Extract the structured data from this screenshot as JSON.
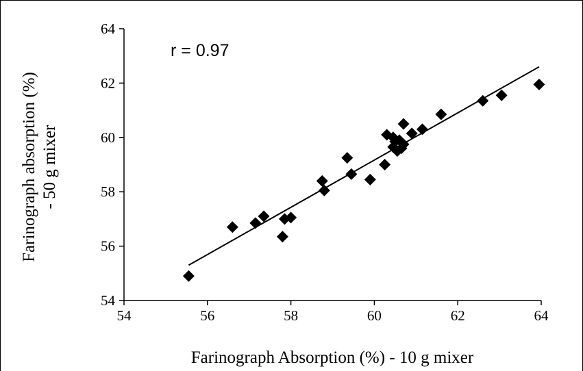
{
  "chart_data": {
    "type": "scatter",
    "title": "",
    "xlabel": "Farinograph Absorption (%) - 10 g mixer",
    "ylabel_line1": "Farinograph absorption (%)",
    "ylabel_line2": "- 50 g mixer",
    "xlim": [
      54,
      64
    ],
    "ylim": [
      54,
      64
    ],
    "xticks": [
      54,
      56,
      58,
      60,
      62,
      64
    ],
    "yticks": [
      54,
      56,
      58,
      60,
      62,
      64
    ],
    "annotation": "r = 0.97",
    "marker": "diamond",
    "marker_color": "#000000",
    "grid": false,
    "trendline": {
      "x": [
        55.55,
        63.95
      ],
      "y": [
        55.3,
        62.6
      ]
    },
    "points": [
      {
        "x": 55.55,
        "y": 54.9
      },
      {
        "x": 56.6,
        "y": 56.7
      },
      {
        "x": 57.15,
        "y": 56.85
      },
      {
        "x": 57.35,
        "y": 57.1
      },
      {
        "x": 57.8,
        "y": 56.35
      },
      {
        "x": 57.85,
        "y": 57.0
      },
      {
        "x": 58.0,
        "y": 57.05
      },
      {
        "x": 58.75,
        "y": 58.4
      },
      {
        "x": 58.8,
        "y": 58.05
      },
      {
        "x": 59.35,
        "y": 59.25
      },
      {
        "x": 59.45,
        "y": 58.65
      },
      {
        "x": 59.9,
        "y": 58.45
      },
      {
        "x": 60.25,
        "y": 59.0
      },
      {
        "x": 60.3,
        "y": 60.1
      },
      {
        "x": 60.45,
        "y": 59.65
      },
      {
        "x": 60.45,
        "y": 60.0
      },
      {
        "x": 60.5,
        "y": 59.85
      },
      {
        "x": 60.55,
        "y": 59.5
      },
      {
        "x": 60.6,
        "y": 59.9
      },
      {
        "x": 60.65,
        "y": 59.6
      },
      {
        "x": 60.7,
        "y": 59.75
      },
      {
        "x": 60.7,
        "y": 60.5
      },
      {
        "x": 60.9,
        "y": 60.15
      },
      {
        "x": 61.15,
        "y": 60.3
      },
      {
        "x": 61.6,
        "y": 60.85
      },
      {
        "x": 62.6,
        "y": 61.35
      },
      {
        "x": 63.05,
        "y": 61.55
      },
      {
        "x": 63.95,
        "y": 61.95
      }
    ]
  }
}
